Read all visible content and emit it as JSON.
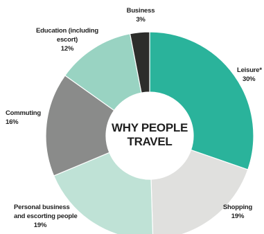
{
  "chart_data": {
    "type": "pie",
    "title": "WHY PEOPLE TRAVEL",
    "title_lines": [
      "WHY PEOPLE",
      "TRAVEL"
    ],
    "slices": [
      {
        "label": "Leisure*",
        "label_lines": [
          "Leisure*"
        ],
        "value": 30,
        "value_label": "30%",
        "color": "#2ab39b"
      },
      {
        "label": "Shopping",
        "label_lines": [
          "Shopping"
        ],
        "value": 19,
        "value_label": "19%",
        "color": "#e0e0de"
      },
      {
        "label": "Personal business and escorting people",
        "label_lines": [
          "Personal business",
          "and escorting people"
        ],
        "value": 19,
        "value_label": "19%",
        "color": "#bfe2d6"
      },
      {
        "label": "Commuting",
        "label_lines": [
          "Commuting"
        ],
        "value": 16,
        "value_label": "16%",
        "color": "#8a8b8a"
      },
      {
        "label": "Education (including escort)",
        "label_lines": [
          "Education (including",
          "escort)"
        ],
        "value": 12,
        "value_label": "12%",
        "color": "#99d3c2"
      },
      {
        "label": "Business",
        "label_lines": [
          "Business"
        ],
        "value": 3,
        "value_label": "3%",
        "color": "#2d2d2b"
      }
    ]
  }
}
